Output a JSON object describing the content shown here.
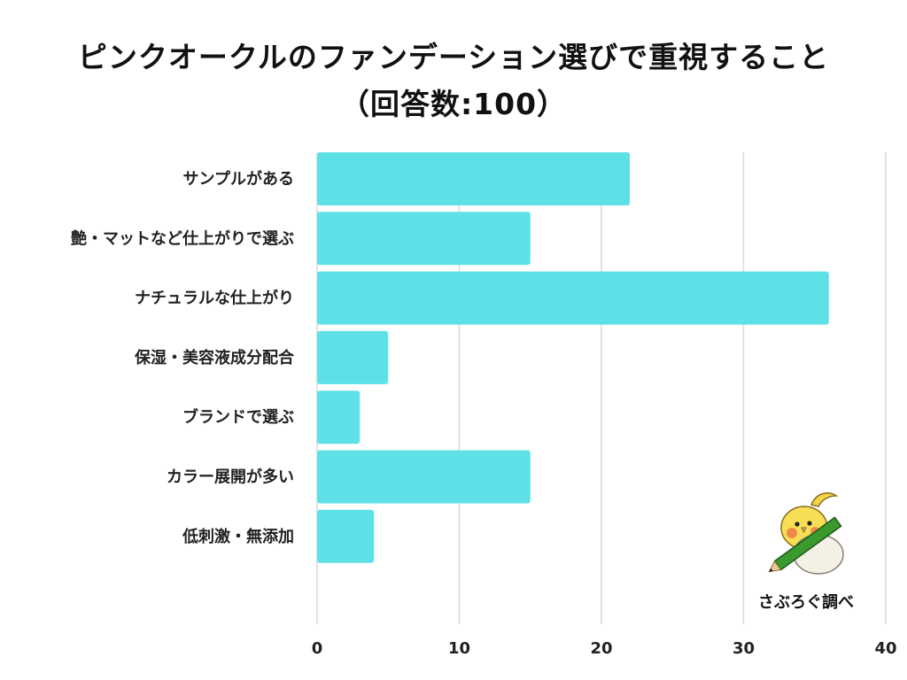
{
  "title": {
    "line1": "ピンクオークルのファンデーション選びで重視すること",
    "line2": "（回答数:100）"
  },
  "credit": "さぶろぐ調べ",
  "colors": {
    "bar": "#5ee1e6",
    "grid": "#d9d9d9"
  },
  "mascot": "cockatiel-with-pencil",
  "chart_data": {
    "type": "bar",
    "orientation": "horizontal",
    "categories": [
      "サンプルがある",
      "艶・マットなど仕上がりで選ぶ",
      "ナチュラルな仕上がり",
      "保湿・美容液成分配合",
      "ブランドで選ぶ",
      "カラー展開が多い",
      "低刺激・無添加"
    ],
    "values": [
      22,
      15,
      36,
      5,
      3,
      15,
      4
    ],
    "xlim": [
      0,
      40
    ],
    "xticks": [
      0,
      10,
      20,
      30,
      40
    ],
    "grid": true,
    "title": "ピンクオークルのファンデーション選びで重視すること（回答数:100）",
    "xlabel": "",
    "ylabel": ""
  }
}
